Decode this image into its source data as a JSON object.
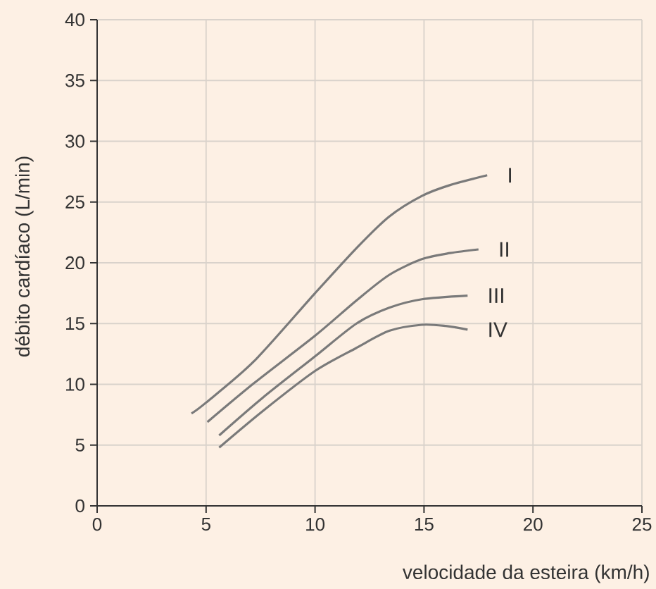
{
  "chart_data": {
    "type": "line",
    "xlabel": "velocidade da esteira (km/h)",
    "ylabel": "débito cardíaco (L/min)",
    "xlim": [
      0,
      25
    ],
    "ylim": [
      0,
      40
    ],
    "xticks": [
      0,
      5,
      10,
      15,
      20,
      25
    ],
    "yticks": [
      0,
      5,
      10,
      15,
      20,
      25,
      30,
      35,
      40
    ],
    "grid": true,
    "series": [
      {
        "name": "I",
        "color": "#7a7a7a",
        "x": [
          4.33,
          5.0,
          7.2,
          10.0,
          11.95,
          13.4,
          14.9,
          16.2,
          17.9
        ],
        "values": [
          7.6,
          8.5,
          11.9,
          17.5,
          21.3,
          23.8,
          25.5,
          26.4,
          27.2
        ]
      },
      {
        "name": "II",
        "color": "#7a7a7a",
        "x": [
          5.06,
          7.2,
          10.0,
          11.9,
          13.4,
          14.9,
          16.2,
          17.5
        ],
        "values": [
          6.9,
          10.1,
          14.0,
          16.9,
          19.0,
          20.3,
          20.8,
          21.1
        ]
      },
      {
        "name": "III",
        "color": "#7a7a7a",
        "x": [
          5.6,
          7.6,
          10.0,
          11.9,
          13.4,
          14.9,
          17.0
        ],
        "values": [
          5.8,
          8.9,
          12.3,
          15.0,
          16.3,
          17.0,
          17.3
        ]
      },
      {
        "name": "IV",
        "color": "#7a7a7a",
        "x": [
          5.6,
          7.6,
          10.0,
          11.9,
          13.4,
          14.9,
          16.0,
          17.0
        ],
        "values": [
          4.8,
          7.8,
          11.1,
          13.0,
          14.4,
          14.9,
          14.8,
          14.5
        ]
      }
    ]
  }
}
